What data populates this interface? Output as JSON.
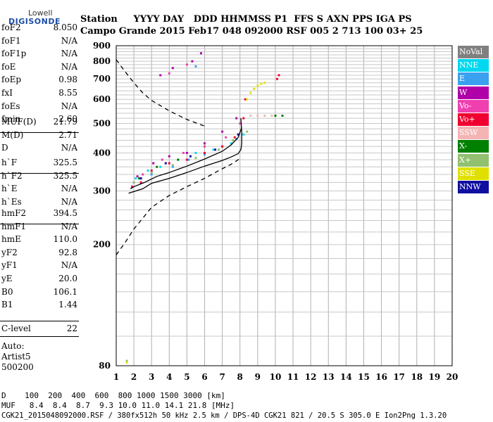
{
  "logo": {
    "line1": "Lowell",
    "line2": "DIGISONDE"
  },
  "header": {
    "row1": "Station     YYYY DAY   DDD HHMMSS P1  FFS S AXN PPS IGA PS",
    "row2": "Campo Grande 2015 Feb17 048 092000 RSF 005 2 713 100 03+ 25"
  },
  "params_a": [
    {
      "k": "foF2",
      "v": "8.050"
    },
    {
      "k": "foF1",
      "v": "N/A"
    },
    {
      "k": "foF1p",
      "v": "N/A"
    },
    {
      "k": "foE",
      "v": "N/A"
    },
    {
      "k": "foEp",
      "v": "0.98"
    },
    {
      "k": "fxI",
      "v": "8.55"
    },
    {
      "k": "foEs",
      "v": "N/A"
    },
    {
      "k": "fmin",
      "v": "2.60"
    }
  ],
  "params_b": [
    {
      "k": "MUF(D)",
      "v": "21.79"
    },
    {
      "k": "M(D)",
      "v": "2.71"
    },
    {
      "k": "D",
      "v": "N/A"
    }
  ],
  "params_c": [
    {
      "k": "h`F",
      "v": "325.5"
    },
    {
      "k": "h`F2",
      "v": "325.5"
    },
    {
      "k": "h`E",
      "v": "N/A"
    },
    {
      "k": "h`Es",
      "v": "N/A"
    }
  ],
  "params_d": [
    {
      "k": "hmF2",
      "v": "394.5"
    },
    {
      "k": "hmF1",
      "v": "N/A"
    },
    {
      "k": "hmE",
      "v": "110.0"
    },
    {
      "k": "yF2",
      "v": "92.8"
    },
    {
      "k": "yF1",
      "v": "N/A"
    },
    {
      "k": "yE",
      "v": "20.0"
    },
    {
      "k": "B0",
      "v": "106.1"
    },
    {
      "k": "B1",
      "v": "1.44"
    }
  ],
  "params_e": [
    {
      "k": "C-level",
      "v": "22"
    }
  ],
  "auto": {
    "line1": "Auto:",
    "line2": "Artist5",
    "line3": "500200"
  },
  "legend": [
    {
      "label": "NoVal",
      "color": "#808080"
    },
    {
      "label": "NNE",
      "color": "#00d8f0"
    },
    {
      "label": "E",
      "color": "#3aa0f0"
    },
    {
      "label": "W",
      "color": "#b000a8"
    },
    {
      "label": "Vo-",
      "color": "#f040b0"
    },
    {
      "label": "Vo+",
      "color": "#f00030"
    },
    {
      "label": "SSW",
      "color": "#f4b4b4"
    },
    {
      "label": "X-",
      "color": "#008000"
    },
    {
      "label": "X+",
      "color": "#90c070"
    },
    {
      "label": "SSE",
      "color": "#e0e000"
    },
    {
      "label": "NNW",
      "color": "#1010a0"
    }
  ],
  "footer": {
    "row1": "D    100  200  400  600  800 1000 1500 3000 [km]",
    "row2": "MUF   8.4  8.4  8.7  9.3 10.0 11.0 14.1 21.8 [MHz]",
    "row3": "CGK21_2015048092000.RSF / 380fx512h 50 kHz 2.5 km / DPS-4D CGK21 821 / 20.5 S 305.0 E Ion2Png 1.3.20"
  },
  "chart_data": {
    "type": "scatter",
    "title": "",
    "xlabel": "",
    "ylabel": "",
    "xlim": [
      1,
      20
    ],
    "ylim": [
      80,
      900
    ],
    "y_scale": "log",
    "x_ticks": [
      1,
      2,
      3,
      4,
      5,
      6,
      7,
      8,
      9,
      10,
      11,
      12,
      13,
      14,
      15,
      16,
      17,
      18,
      19,
      20
    ],
    "y_ticks": [
      80,
      200,
      300,
      400,
      500,
      600,
      700,
      800,
      900
    ],
    "grid": true,
    "legend_placement": "right",
    "lines": [
      {
        "style": "solid",
        "x": [
          1.7,
          2.5,
          3.0,
          4.0,
          5.0,
          6.0,
          7.0,
          7.5,
          7.9,
          8.05,
          8.1,
          8.1,
          8.05
        ],
        "y": [
          295,
          305,
          318,
          330,
          345,
          362,
          378,
          388,
          398,
          410,
          428,
          470,
          520
        ]
      },
      {
        "style": "solid",
        "x": [
          1.8,
          2.0,
          2.6,
          3.3,
          4.0,
          5.0,
          6.0,
          7.0,
          7.5,
          7.9,
          8.1
        ],
        "y": [
          305,
          310,
          320,
          335,
          345,
          362,
          382,
          405,
          425,
          450,
          485
        ]
      },
      {
        "style": "dashed",
        "x": [
          1.0,
          1.5,
          2.0,
          3.0,
          4.0,
          5.0,
          6.0,
          7.0,
          7.5,
          8.05
        ],
        "y": [
          185,
          203,
          225,
          265,
          290,
          310,
          330,
          355,
          367,
          385
        ]
      },
      {
        "style": "dashed",
        "x": [
          1.0,
          1.5,
          2.0,
          2.5,
          3.0,
          4.0,
          5.0,
          6.0
        ],
        "y": [
          810,
          740,
          680,
          630,
          595,
          550,
          515,
          490
        ]
      }
    ],
    "series": [
      {
        "name": "NNE",
        "color": "#00d8f0",
        "points": [
          [
            2.1,
            330
          ],
          [
            2.8,
            350
          ],
          [
            3.5,
            360
          ],
          [
            4.5,
            380
          ],
          [
            5.5,
            400
          ],
          [
            6.5,
            410
          ],
          [
            7.5,
            430
          ],
          [
            8.2,
            460
          ]
        ]
      },
      {
        "name": "E",
        "color": "#3aa0f0",
        "points": [
          [
            2.0,
            320
          ],
          [
            3.0,
            340
          ],
          [
            4.2,
            360
          ],
          [
            5.1,
            380
          ],
          [
            6.0,
            395
          ],
          [
            7.0,
            420
          ],
          [
            7.8,
            445
          ],
          [
            5.5,
            770
          ]
        ]
      },
      {
        "name": "W",
        "color": "#b000a8",
        "points": [
          [
            2.2,
            335
          ],
          [
            3.1,
            370
          ],
          [
            4.0,
            390
          ],
          [
            5.0,
            400
          ],
          [
            6.0,
            430
          ],
          [
            7.0,
            470
          ],
          [
            7.8,
            520
          ],
          [
            3.5,
            720
          ],
          [
            4.2,
            760
          ],
          [
            5.3,
            800
          ],
          [
            5.8,
            850
          ]
        ]
      },
      {
        "name": "Vo-",
        "color": "#f040b0",
        "points": [
          [
            2.5,
            340
          ],
          [
            3.6,
            380
          ],
          [
            4.8,
            400
          ],
          [
            6.0,
            420
          ],
          [
            7.2,
            450
          ],
          [
            8.0,
            500
          ],
          [
            4.0,
            730
          ],
          [
            5.0,
            780
          ]
        ]
      },
      {
        "name": "Vo+",
        "color": "#f00030",
        "points": [
          [
            1.9,
            310
          ],
          [
            2.4,
            320
          ],
          [
            3.0,
            350
          ],
          [
            4.0,
            370
          ],
          [
            5.0,
            380
          ],
          [
            6.0,
            400
          ],
          [
            7.0,
            420
          ],
          [
            7.7,
            450
          ],
          [
            8.2,
            520
          ],
          [
            8.3,
            600
          ],
          [
            10.1,
            700
          ],
          [
            10.2,
            720
          ]
        ]
      },
      {
        "name": "SSW",
        "color": "#f4b4b4",
        "points": [
          [
            8.6,
            530
          ],
          [
            9.0,
            530
          ],
          [
            9.4,
            530
          ],
          [
            9.8,
            530
          ]
        ]
      },
      {
        "name": "X-",
        "color": "#008000",
        "points": [
          [
            2.3,
            330
          ],
          [
            3.3,
            360
          ],
          [
            4.5,
            380
          ],
          [
            10.0,
            530
          ],
          [
            10.4,
            530
          ]
        ]
      },
      {
        "name": "X+",
        "color": "#90c070",
        "points": [
          [
            2.0,
            320
          ],
          [
            3.0,
            345
          ],
          [
            4.2,
            365
          ],
          [
            5.5,
            385
          ],
          [
            6.8,
            410
          ],
          [
            7.6,
            440
          ],
          [
            8.4,
            470
          ],
          [
            1.6,
            83
          ]
        ]
      },
      {
        "name": "SSE",
        "color": "#e0e000",
        "points": [
          [
            8.4,
            600
          ],
          [
            8.6,
            630
          ],
          [
            8.8,
            650
          ],
          [
            9.0,
            665
          ],
          [
            9.2,
            675
          ],
          [
            9.4,
            680
          ],
          [
            1.6,
            82
          ]
        ]
      },
      {
        "name": "NNW",
        "color": "#1010a0",
        "points": [
          [
            2.4,
            330
          ],
          [
            3.8,
            370
          ],
          [
            5.2,
            390
          ],
          [
            6.6,
            410
          ],
          [
            7.9,
            460
          ]
        ]
      }
    ]
  }
}
